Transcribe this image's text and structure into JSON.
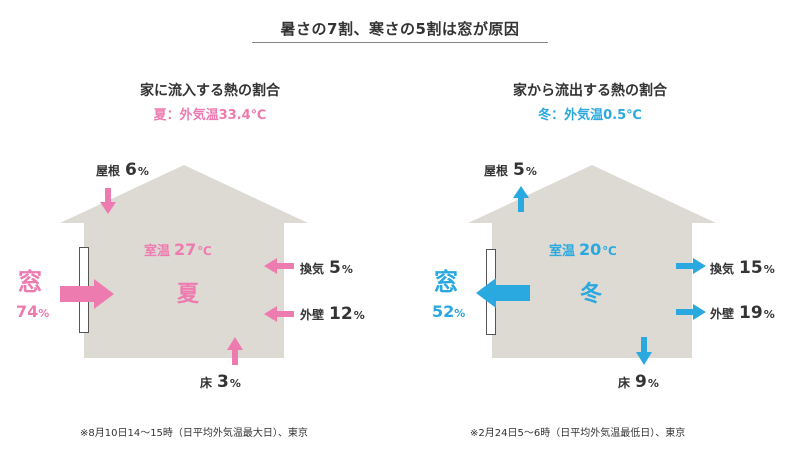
{
  "title": "暑さの7割、寒さの5割は窓が原因",
  "colors": {
    "summer": "#ee7bb0",
    "winter": "#2aa8e0",
    "house": "#dcdad3"
  },
  "summer": {
    "heading": "家に流入する熱の割合",
    "season_label": "夏：外気温33.4℃",
    "room_label": "室温",
    "room_temp": "27",
    "room_unit": "℃",
    "season_char": "夏",
    "window_label": "窓",
    "window_value": "74",
    "roof_label": "屋根",
    "roof_value": "6",
    "vent_label": "換気",
    "vent_value": "5",
    "wall_label": "外壁",
    "wall_value": "12",
    "floor_label": "床",
    "floor_value": "3",
    "percent": "%",
    "note": "※8月10日14～15時（日平均外気温最大日）、東京"
  },
  "winter": {
    "heading": "家から流出する熱の割合",
    "season_label": "冬：外気温0.5℃",
    "room_label": "室温",
    "room_temp": "20",
    "room_unit": "℃",
    "season_char": "冬",
    "window_label": "窓",
    "window_value": "52",
    "roof_label": "屋根",
    "roof_value": "5",
    "vent_label": "換気",
    "vent_value": "15",
    "wall_label": "外壁",
    "wall_value": "19",
    "floor_label": "床",
    "floor_value": "9",
    "percent": "%",
    "note": "※2月24日5～6時（日平均外気温最低日）、東京"
  }
}
